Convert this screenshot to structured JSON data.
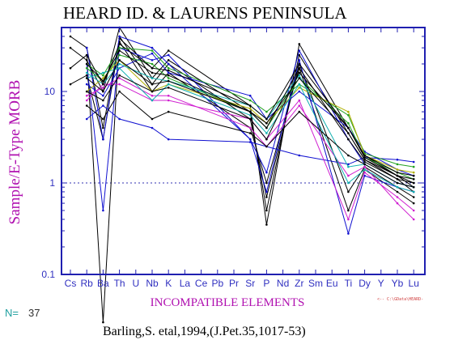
{
  "chart_data": {
    "type": "line",
    "title": "HEARD ID. & LAURENS PENINSULA",
    "ylabel": "Sample/E-Type MORB",
    "xlabel": "INCOMPATIBLE ELEMENTS",
    "yscale": "log",
    "ylim": [
      0.1,
      50
    ],
    "yticks": [
      "0.1",
      "1",
      "10"
    ],
    "reference_line": 1,
    "categories": [
      "Cs",
      "Rb",
      "Ba",
      "Th",
      "U",
      "Nb",
      "K",
      "La",
      "Ce",
      "Pb",
      "Pr",
      "Sr",
      "P",
      "Nd",
      "Zr",
      "Sm",
      "Eu",
      "Ti",
      "Dy",
      "Y",
      "Yb",
      "Lu"
    ],
    "n_label": "N=",
    "n_value": "37",
    "citation": "Barling,S. etal,1994,(J.Pet.35,1017-53)",
    "path_note": "<-- C:\\GData\\HEARD-",
    "series": [
      {
        "color": "#000000",
        "values": [
          40,
          30,
          4,
          38,
          null,
          18,
          28,
          null,
          null,
          null,
          null,
          7,
          0.35,
          null,
          33,
          null,
          null,
          4,
          2,
          null,
          1.2,
          0.9
        ]
      },
      {
        "color": "#000000",
        "values": [
          30,
          22,
          10,
          50,
          null,
          14,
          22,
          null,
          null,
          null,
          null,
          6,
          0.5,
          null,
          25,
          null,
          null,
          3.5,
          1.8,
          null,
          1.1,
          0.8
        ]
      },
      {
        "color": "#000000",
        "values": [
          18,
          25,
          0.03,
          40,
          null,
          12,
          20,
          null,
          null,
          null,
          null,
          5,
          0.7,
          null,
          20,
          null,
          null,
          0.8,
          1.5,
          null,
          0.9,
          0.7
        ]
      },
      {
        "color": "#000000",
        "values": [
          12,
          15,
          3,
          35,
          null,
          10,
          16,
          null,
          null,
          null,
          null,
          4,
          1,
          null,
          18,
          null,
          null,
          0.5,
          1.4,
          null,
          0.8,
          0.6
        ]
      },
      {
        "color": "#1010d0",
        "values": [
          null,
          5,
          7,
          5,
          null,
          4,
          3,
          null,
          null,
          null,
          null,
          2.8,
          null,
          null,
          2,
          null,
          null,
          1.6,
          1.9,
          null,
          1.8,
          1.7
        ]
      },
      {
        "color": "#1010d0",
        "values": [
          null,
          20,
          0.5,
          30,
          null,
          22,
          25,
          null,
          null,
          null,
          null,
          3,
          0.8,
          null,
          22,
          null,
          null,
          0.28,
          1.2,
          null,
          0.9,
          0.8
        ]
      },
      {
        "color": "#1010d0",
        "values": [
          null,
          12,
          9,
          18,
          null,
          26,
          16,
          null,
          null,
          null,
          null,
          9,
          5,
          null,
          10,
          null,
          null,
          4,
          2.2,
          null,
          1.4,
          1.2
        ]
      },
      {
        "color": "#1010d0",
        "values": [
          null,
          30,
          3,
          40,
          null,
          30,
          20,
          null,
          null,
          null,
          null,
          3,
          1.3,
          null,
          28,
          null,
          null,
          3,
          1.6,
          null,
          1,
          0.9
        ]
      },
      {
        "color": "#20a020",
        "values": [
          null,
          20,
          15,
          30,
          null,
          28,
          18,
          null,
          null,
          null,
          null,
          8,
          6,
          null,
          12,
          null,
          null,
          5.5,
          2.1,
          null,
          1.6,
          1.5
        ]
      },
      {
        "color": "#20a020",
        "values": [
          null,
          18,
          13,
          25,
          null,
          20,
          14,
          null,
          null,
          null,
          null,
          6,
          4,
          null,
          14,
          null,
          null,
          4.5,
          1.9,
          null,
          1.3,
          1.1
        ]
      },
      {
        "color": "#b0b000",
        "values": [
          null,
          10,
          14,
          22,
          null,
          10,
          12,
          null,
          null,
          null,
          null,
          6.5,
          4.5,
          null,
          11,
          null,
          null,
          6,
          2,
          null,
          1.4,
          1.3
        ]
      },
      {
        "color": "#d020d0",
        "values": [
          null,
          8,
          12,
          12,
          null,
          8,
          8,
          null,
          null,
          null,
          null,
          5,
          3,
          null,
          8,
          null,
          null,
          0.4,
          1.3,
          null,
          0.7,
          0.5
        ]
      },
      {
        "color": "#d020d0",
        "values": [
          null,
          9,
          11,
          14,
          null,
          9,
          9,
          null,
          null,
          null,
          null,
          4,
          2.5,
          null,
          7,
          null,
          null,
          1.2,
          1.5,
          null,
          0.6,
          0.4
        ]
      },
      {
        "color": "#10b0b0",
        "values": [
          null,
          14,
          16,
          18,
          null,
          8,
          12,
          null,
          null,
          null,
          null,
          5.5,
          3.5,
          null,
          12,
          null,
          null,
          1,
          1.4,
          null,
          0.9,
          0.8
        ]
      },
      {
        "color": "#10b0b0",
        "values": [
          null,
          16,
          12,
          20,
          null,
          14,
          13,
          null,
          null,
          null,
          null,
          7,
          5,
          null,
          15,
          null,
          null,
          1.5,
          1.6,
          null,
          1,
          0.9
        ]
      },
      {
        "color": "#000000",
        "values": [
          null,
          20,
          13,
          28,
          null,
          16,
          15,
          null,
          null,
          null,
          null,
          6,
          4,
          null,
          18,
          null,
          null,
          3,
          1.7,
          null,
          1.1,
          1
        ]
      },
      {
        "color": "#000000",
        "values": [
          null,
          10,
          8,
          15,
          null,
          10,
          11,
          null,
          null,
          null,
          null,
          5,
          3,
          null,
          16,
          null,
          null,
          4,
          1.9,
          null,
          1.2,
          1
        ]
      },
      {
        "color": "#000000",
        "values": [
          null,
          7,
          5,
          10,
          null,
          5,
          6,
          null,
          null,
          null,
          null,
          3.5,
          2.5,
          null,
          6,
          null,
          null,
          2,
          1.6,
          null,
          1,
          0.9
        ]
      },
      {
        "color": "#000000",
        "values": [
          null,
          14,
          10,
          22,
          null,
          12,
          13,
          null,
          null,
          null,
          null,
          6,
          4.5,
          null,
          14,
          null,
          null,
          3.5,
          1.8,
          null,
          1.2,
          1.1
        ]
      },
      {
        "color": "#000000",
        "values": [
          null,
          25,
          12,
          33,
          null,
          18,
          17,
          null,
          null,
          null,
          null,
          7,
          5,
          null,
          20,
          null,
          null,
          4,
          2,
          null,
          1.3,
          1.2
        ]
      }
    ]
  }
}
